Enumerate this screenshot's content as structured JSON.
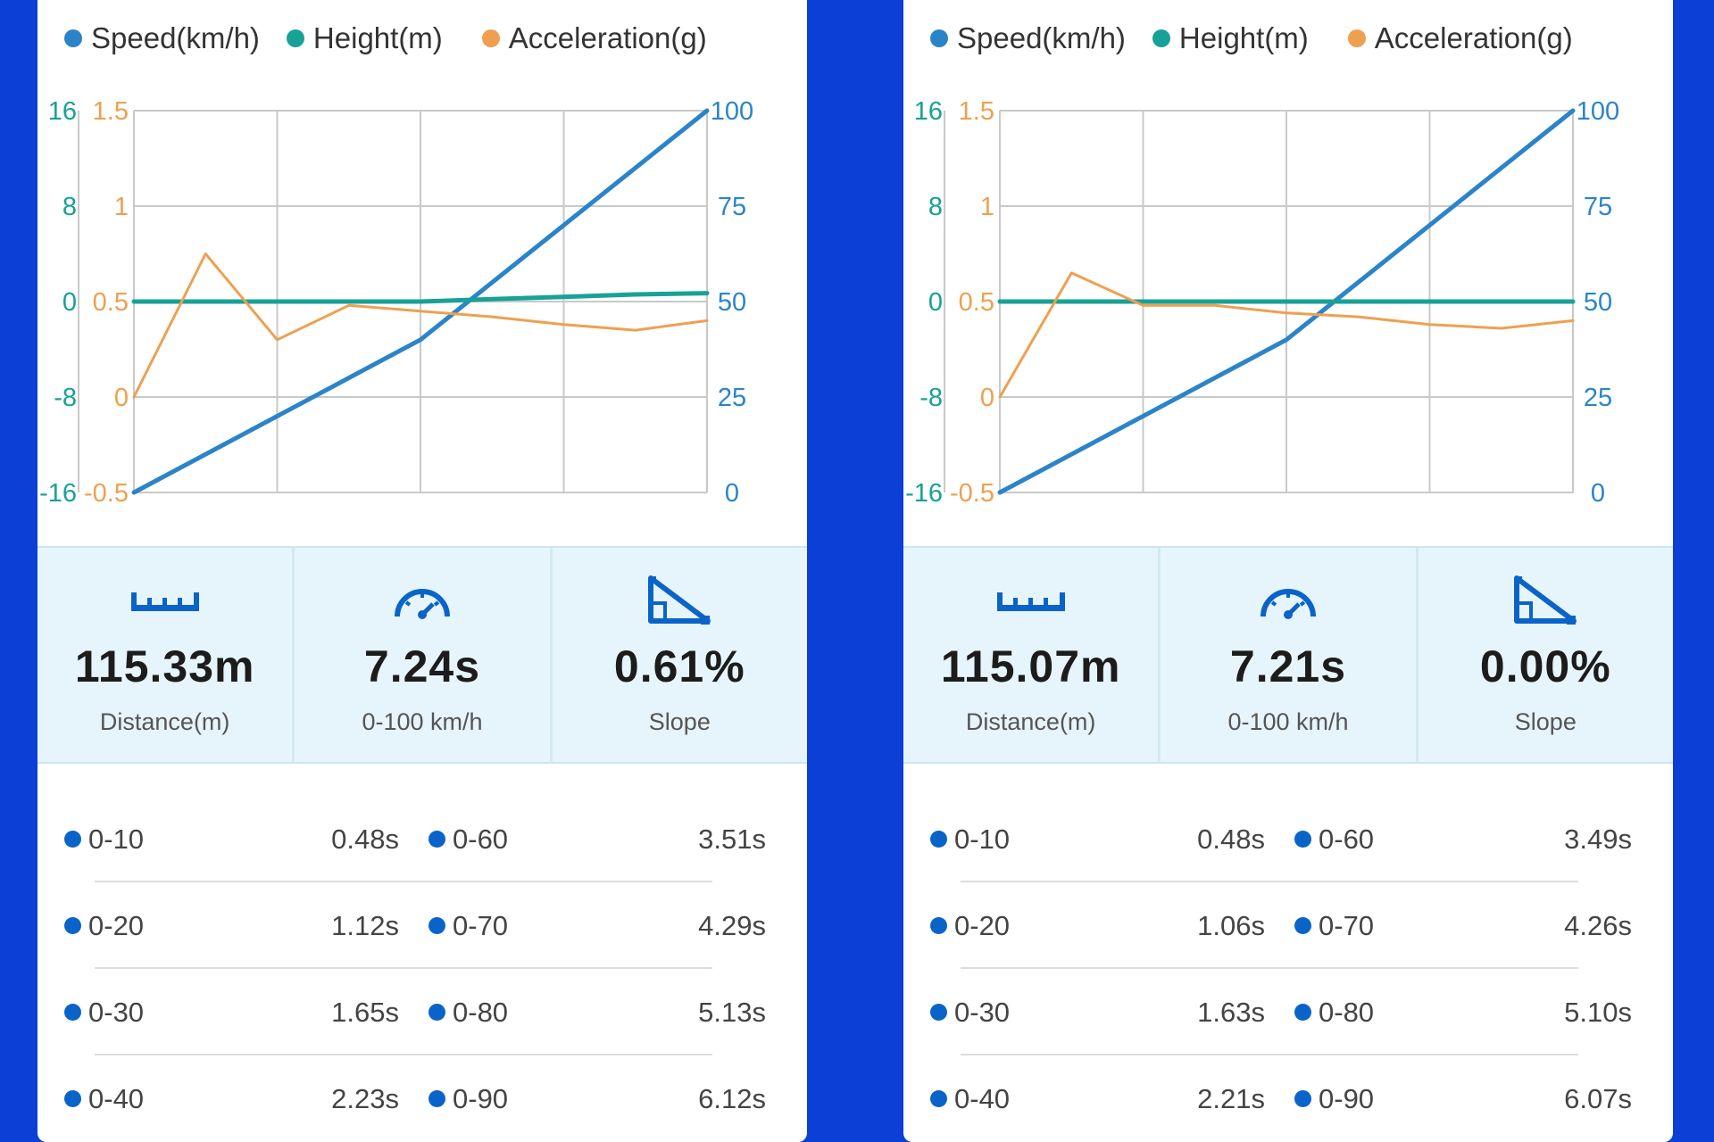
{
  "colors": {
    "speed": "#2b84c9",
    "height": "#18a197",
    "acceleration": "#eea050",
    "accent": "#0a64c8",
    "background": "#0b3fd6"
  },
  "icons": {
    "distance": "ruler-icon",
    "time": "speedometer-icon",
    "slope": "slope-triangle-icon"
  },
  "panels": [
    {
      "legend": {
        "speed": "Speed(km/h)",
        "height": "Height(m)",
        "acceleration": "Acceleration(g)"
      },
      "stats": [
        {
          "value": "115.33m",
          "label": "Distance(m)"
        },
        {
          "value": "7.24s",
          "label": "0-100 km/h"
        },
        {
          "value": "0.61%",
          "label": "Slope"
        }
      ],
      "splits": [
        {
          "left_range": "0-10",
          "left_time": "0.48s",
          "right_range": "0-60",
          "right_time": "3.51s"
        },
        {
          "left_range": "0-20",
          "left_time": "1.12s",
          "right_range": "0-70",
          "right_time": "4.29s"
        },
        {
          "left_range": "0-30",
          "left_time": "1.65s",
          "right_range": "0-80",
          "right_time": "5.13s"
        },
        {
          "left_range": "0-40",
          "left_time": "2.23s",
          "right_range": "0-90",
          "right_time": "6.12s"
        }
      ]
    },
    {
      "legend": {
        "speed": "Speed(km/h)",
        "height": "Height(m)",
        "acceleration": "Acceleration(g)"
      },
      "stats": [
        {
          "value": "115.07m",
          "label": "Distance(m)"
        },
        {
          "value": "7.21s",
          "label": "0-100 km/h"
        },
        {
          "value": "0.00%",
          "label": "Slope"
        }
      ],
      "splits": [
        {
          "left_range": "0-10",
          "left_time": "0.48s",
          "right_range": "0-60",
          "right_time": "3.49s"
        },
        {
          "left_range": "0-20",
          "left_time": "1.06s",
          "right_range": "0-70",
          "right_time": "4.26s"
        },
        {
          "left_range": "0-30",
          "left_time": "1.63s",
          "right_range": "0-80",
          "right_time": "5.10s"
        },
        {
          "left_range": "0-40",
          "left_time": "2.21s",
          "right_range": "0-90",
          "right_time": "6.07s"
        }
      ]
    }
  ],
  "chart_data": [
    {
      "type": "line",
      "x": [
        0,
        1,
        2,
        3,
        4,
        5,
        6,
        7,
        8
      ],
      "x_label": "",
      "axes": {
        "height": {
          "ticks": [
            "16",
            "8",
            "0",
            "-8",
            "-16"
          ],
          "ylim": [
            -16,
            16
          ]
        },
        "acceleration": {
          "ticks": [
            "1.5",
            "1",
            "0.5",
            "0",
            "-0.5"
          ],
          "ylim": [
            -0.5,
            1.5
          ]
        },
        "speed": {
          "ticks": [
            "100",
            "75",
            "50",
            "25",
            "0"
          ],
          "ylim": [
            0,
            100
          ]
        }
      },
      "grid": true,
      "legend": "top",
      "series": [
        {
          "name": "Speed(km/h)",
          "axis": "speed",
          "values": [
            0,
            10,
            20,
            30,
            40,
            55,
            70,
            85,
            100
          ]
        },
        {
          "name": "Height(m)",
          "axis": "height",
          "values": [
            0,
            0,
            0,
            0,
            0,
            0.2,
            0.4,
            0.6,
            0.7
          ]
        },
        {
          "name": "Acceleration(g)",
          "axis": "acceleration",
          "values": [
            0,
            0.75,
            0.3,
            0.48,
            0.45,
            0.42,
            0.38,
            0.35,
            0.4
          ]
        }
      ]
    },
    {
      "type": "line",
      "x": [
        0,
        1,
        2,
        3,
        4,
        5,
        6,
        7,
        8
      ],
      "x_label": "",
      "axes": {
        "height": {
          "ticks": [
            "16",
            "8",
            "0",
            "-8",
            "-16"
          ],
          "ylim": [
            -16,
            16
          ]
        },
        "acceleration": {
          "ticks": [
            "1.5",
            "1",
            "0.5",
            "0",
            "-0.5"
          ],
          "ylim": [
            -0.5,
            1.5
          ]
        },
        "speed": {
          "ticks": [
            "100",
            "75",
            "50",
            "25",
            "0"
          ],
          "ylim": [
            0,
            100
          ]
        }
      },
      "grid": true,
      "legend": "top",
      "series": [
        {
          "name": "Speed(km/h)",
          "axis": "speed",
          "values": [
            0,
            10,
            20,
            30,
            40,
            55,
            70,
            85,
            100
          ]
        },
        {
          "name": "Height(m)",
          "axis": "height",
          "values": [
            0,
            0,
            0,
            0,
            0,
            0,
            0,
            0,
            0
          ]
        },
        {
          "name": "Acceleration(g)",
          "axis": "acceleration",
          "values": [
            0,
            0.65,
            0.48,
            0.48,
            0.44,
            0.42,
            0.38,
            0.36,
            0.4
          ]
        }
      ]
    }
  ]
}
